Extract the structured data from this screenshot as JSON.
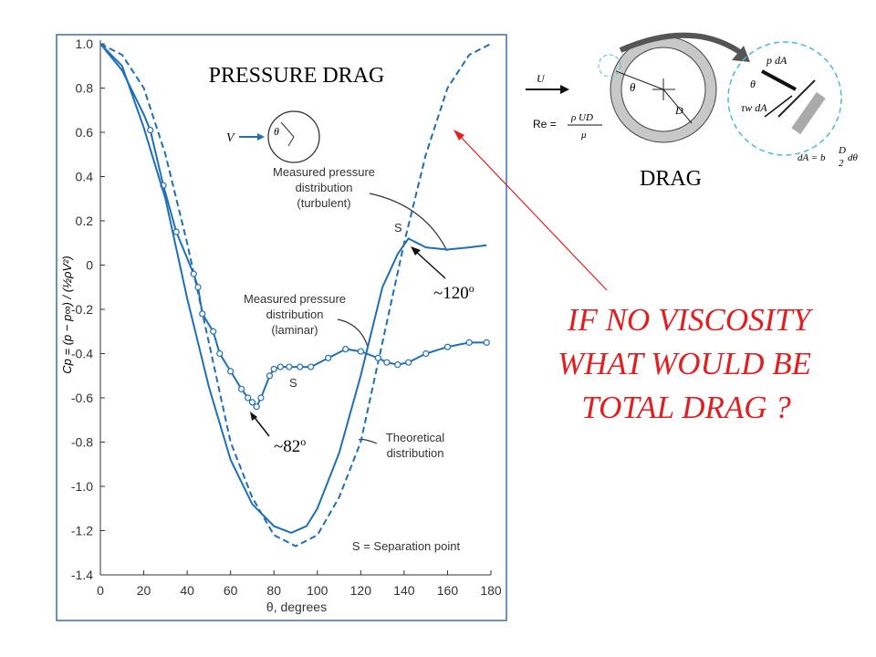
{
  "chart_data": {
    "type": "line",
    "title": "PRESSURE DRAG",
    "xlabel": "θ, degrees",
    "ylabel": "Cp = (p − p∞) / (½ρV²)",
    "xlim": [
      0,
      180
    ],
    "xticks": [
      0,
      20,
      40,
      60,
      80,
      100,
      120,
      140,
      160,
      180
    ],
    "ylim": [
      -1.4,
      1.0
    ],
    "yticks": [
      {
        "value": 1.0,
        "label": "1.0"
      },
      0.8,
      0.6,
      0.4,
      0.2,
      0,
      -0.2,
      -0.4,
      -0.6,
      -0.8,
      {
        "value": -1.0,
        "label": "-1.0"
      },
      -1.2,
      -1.4
    ],
    "color": "#1f6fb5",
    "series": [
      {
        "name": "Theoretical distribution",
        "dashed": true,
        "x": [
          0,
          10,
          20,
          30,
          40,
          50,
          60,
          70,
          80,
          90,
          100,
          110,
          120,
          130,
          140,
          150,
          160,
          170,
          180
        ],
        "values": [
          1.0,
          0.95,
          0.8,
          0.5,
          0.1,
          -0.35,
          -0.8,
          -1.05,
          -1.22,
          -1.27,
          -1.22,
          -1.05,
          -0.8,
          -0.35,
          0.1,
          0.5,
          0.8,
          0.95,
          1.0
        ]
      },
      {
        "name": "Measured pressure distribution (laminar)",
        "markers": true,
        "x": [
          0,
          10,
          20,
          23,
          29,
          35,
          43,
          45,
          47,
          52,
          55,
          60,
          65,
          68,
          70,
          72,
          74,
          78,
          80,
          83,
          87,
          92,
          97,
          105,
          113,
          120,
          128,
          132,
          137,
          142,
          150,
          160,
          170,
          178
        ],
        "values": [
          1.0,
          0.88,
          0.68,
          0.61,
          0.36,
          0.15,
          -0.04,
          -0.1,
          -0.22,
          -0.3,
          -0.4,
          -0.48,
          -0.56,
          -0.6,
          -0.62,
          -0.64,
          -0.6,
          -0.5,
          -0.47,
          -0.46,
          -0.46,
          -0.46,
          -0.46,
          -0.42,
          -0.38,
          -0.39,
          -0.42,
          -0.44,
          -0.45,
          -0.44,
          -0.4,
          -0.37,
          -0.35,
          -0.35
        ]
      },
      {
        "name": "Measured pressure distribution (turbulent)",
        "x": [
          0,
          10,
          20,
          30,
          40,
          50,
          60,
          70,
          80,
          88,
          95,
          100,
          110,
          120,
          130,
          137,
          142,
          150,
          160,
          170,
          178
        ],
        "values": [
          1.0,
          0.9,
          0.62,
          0.3,
          -0.15,
          -0.55,
          -0.88,
          -1.08,
          -1.18,
          -1.21,
          -1.18,
          -1.1,
          -0.85,
          -0.5,
          -0.1,
          0.05,
          0.12,
          0.08,
          0.07,
          0.08,
          0.09
        ]
      }
    ],
    "annotations": {
      "turbulent": [
        "Measured pressure",
        "distribution",
        "(turbulent)"
      ],
      "laminar": [
        "Measured pressure",
        "distribution",
        "(laminar)"
      ],
      "theoretical": [
        "Theoretical",
        "distribution"
      ],
      "separation_key": "S = Separation point",
      "separation_mark": "S",
      "angle_120": "~120",
      "angle_82": "~82",
      "degree": "o",
      "inset_velocity": "V",
      "inset_angle": "θ"
    }
  },
  "slide": {
    "drag_title": "DRAG",
    "question": [
      "IF NO VISCOSITY",
      "WHAT WOULD BE",
      "TOTAL DRAG ?"
    ],
    "diagram": {
      "flow": "U",
      "reynolds": "Re =",
      "re_num": "ρ UD",
      "re_den": "μ",
      "theta": "θ",
      "diameter": "D",
      "pressure_force": "p dA",
      "shear_force": "τw dA",
      "area": "dA = b",
      "area_num": "D",
      "area_den": "2",
      "area_end": "dθ"
    }
  }
}
